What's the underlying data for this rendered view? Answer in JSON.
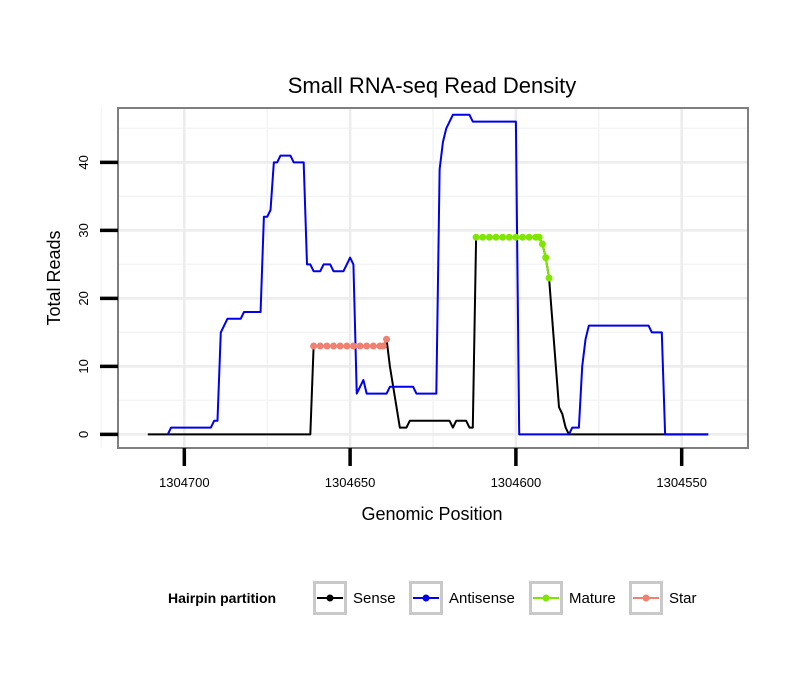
{
  "chart_data": {
    "type": "line",
    "title": "Small RNA-seq Read Density",
    "xlabel": "Genomic Position",
    "ylabel": "Total Reads",
    "x_reversed": true,
    "xlim": [
      1304720,
      1304530
    ],
    "ylim": [
      -2,
      48
    ],
    "x_ticks": [
      1304700,
      1304650,
      1304600,
      1304550
    ],
    "x_tick_labels": [
      "1304700",
      "1304650",
      "1304600",
      "1304550"
    ],
    "y_ticks": [
      0,
      10,
      20,
      30,
      40
    ],
    "y_tick_labels": [
      "0",
      "10",
      "20",
      "30",
      "40"
    ],
    "grid": true,
    "legend": {
      "title": "Hairpin partition",
      "position": "bottom",
      "entries": [
        {
          "label": "Sense",
          "color": "#000000"
        },
        {
          "label": "Antisense",
          "color": "#0000ee"
        },
        {
          "label": "Mature",
          "color": "#7fe600"
        },
        {
          "label": "Star",
          "color": "#f08070"
        }
      ]
    },
    "series": [
      {
        "name": "Sense",
        "color": "#000000",
        "points": [
          [
            1304711,
            0
          ],
          [
            1304662,
            0
          ],
          [
            1304661,
            13
          ],
          [
            1304655,
            13
          ],
          [
            1304650,
            13
          ],
          [
            1304645,
            13
          ],
          [
            1304640,
            13
          ],
          [
            1304639,
            14
          ],
          [
            1304638,
            10
          ],
          [
            1304636,
            4
          ],
          [
            1304635,
            1
          ],
          [
            1304633,
            1
          ],
          [
            1304632,
            2
          ],
          [
            1304620,
            2
          ],
          [
            1304619,
            1
          ],
          [
            1304618,
            2
          ],
          [
            1304615,
            2
          ],
          [
            1304614,
            1
          ],
          [
            1304613,
            1
          ],
          [
            1304612,
            29
          ],
          [
            1304593,
            29
          ],
          [
            1304592,
            28
          ],
          [
            1304591,
            26
          ],
          [
            1304590,
            23
          ],
          [
            1304587,
            4
          ],
          [
            1304586,
            3
          ],
          [
            1304585,
            1
          ],
          [
            1304584,
            0
          ],
          [
            1304542,
            0
          ]
        ]
      },
      {
        "name": "Antisense",
        "color": "#0000ee",
        "points": [
          [
            1304705,
            0
          ],
          [
            1304704,
            1
          ],
          [
            1304692,
            1
          ],
          [
            1304691,
            2
          ],
          [
            1304690,
            2
          ],
          [
            1304689,
            15
          ],
          [
            1304687,
            17
          ],
          [
            1304683,
            17
          ],
          [
            1304682,
            18
          ],
          [
            1304677,
            18
          ],
          [
            1304676,
            32
          ],
          [
            1304675,
            32
          ],
          [
            1304674,
            33
          ],
          [
            1304673,
            40
          ],
          [
            1304672,
            40
          ],
          [
            1304671,
            41
          ],
          [
            1304668,
            41
          ],
          [
            1304667,
            40
          ],
          [
            1304664,
            40
          ],
          [
            1304663,
            25
          ],
          [
            1304662,
            25
          ],
          [
            1304661,
            24
          ],
          [
            1304659,
            24
          ],
          [
            1304658,
            25
          ],
          [
            1304656,
            25
          ],
          [
            1304655,
            24
          ],
          [
            1304652,
            24
          ],
          [
            1304651,
            25
          ],
          [
            1304650,
            26
          ],
          [
            1304649,
            25
          ],
          [
            1304648,
            6
          ],
          [
            1304646,
            8
          ],
          [
            1304645,
            6
          ],
          [
            1304639,
            6
          ],
          [
            1304638,
            7
          ],
          [
            1304631,
            7
          ],
          [
            1304630,
            6
          ],
          [
            1304624,
            6
          ],
          [
            1304623,
            39
          ],
          [
            1304622,
            43
          ],
          [
            1304621,
            45
          ],
          [
            1304620,
            46
          ],
          [
            1304619,
            47
          ],
          [
            1304614,
            47
          ],
          [
            1304613,
            46
          ],
          [
            1304600,
            46
          ],
          [
            1304599,
            0
          ],
          [
            1304584,
            0
          ],
          [
            1304583,
            1
          ],
          [
            1304581,
            1
          ],
          [
            1304580,
            10
          ],
          [
            1304579,
            14
          ],
          [
            1304578,
            16
          ],
          [
            1304560,
            16
          ],
          [
            1304559,
            15
          ],
          [
            1304556,
            15
          ],
          [
            1304555,
            0
          ],
          [
            1304542,
            0
          ]
        ]
      },
      {
        "name": "Mature",
        "color": "#7fe600",
        "points": [
          [
            1304612,
            29
          ],
          [
            1304610,
            29
          ],
          [
            1304608,
            29
          ],
          [
            1304606,
            29
          ],
          [
            1304604,
            29
          ],
          [
            1304602,
            29
          ],
          [
            1304600,
            29
          ],
          [
            1304598,
            29
          ],
          [
            1304596,
            29
          ],
          [
            1304594,
            29
          ],
          [
            1304593,
            29
          ],
          [
            1304592,
            28
          ],
          [
            1304591,
            26
          ],
          [
            1304590,
            23
          ]
        ]
      },
      {
        "name": "Star",
        "color": "#f08070",
        "points": [
          [
            1304661,
            13
          ],
          [
            1304659,
            13
          ],
          [
            1304657,
            13
          ],
          [
            1304655,
            13
          ],
          [
            1304653,
            13
          ],
          [
            1304651,
            13
          ],
          [
            1304649,
            13
          ],
          [
            1304647,
            13
          ],
          [
            1304645,
            13
          ],
          [
            1304643,
            13
          ],
          [
            1304641,
            13
          ],
          [
            1304640,
            13
          ],
          [
            1304639,
            14
          ]
        ]
      }
    ]
  }
}
